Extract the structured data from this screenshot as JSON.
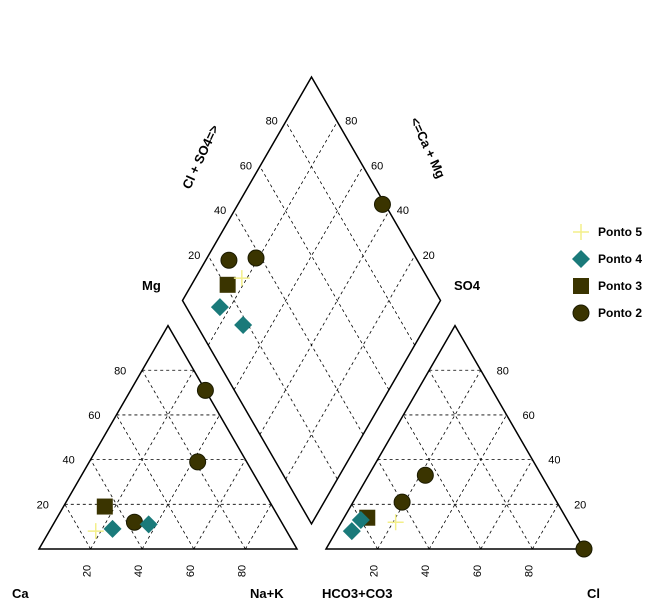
{
  "chart_data": {
    "type": "scatter",
    "subtype": "piper-diagram",
    "labels": {
      "cation_left": "Ca",
      "cation_right": "Na+K",
      "cation_top": "Mg",
      "anion_left": "HCO3+CO3",
      "anion_right": "Cl",
      "anion_top": "SO4",
      "diamond_left_axis": "Cl + SO4=>",
      "diamond_right_axis": "<=Ca + Mg"
    },
    "ticks": [
      "20",
      "40",
      "60",
      "80"
    ],
    "grid": "dashed",
    "legend_position": "right",
    "series": [
      {
        "name": "Ponto 5",
        "marker": "plus",
        "color": "#f3ef8a",
        "cations": [
          {
            "mg": 8,
            "na": 18,
            "ca": 74
          }
        ],
        "anions": [
          {
            "so4": 12,
            "cl": 21,
            "hco3": 67
          }
        ],
        "diamond": [
          {
            "cl_so4": 28,
            "ca_mg": 82
          }
        ]
      },
      {
        "name": "Ponto 4",
        "marker": "diamond",
        "color": "#1a7a7a",
        "cations": [
          {
            "mg": 9,
            "na": 24,
            "ca": 67
          },
          {
            "mg": 11,
            "na": 37,
            "ca": 52
          }
        ],
        "anions": [
          {
            "so4": 8,
            "cl": 6,
            "hco3": 86
          },
          {
            "so4": 13,
            "cl": 7,
            "hco3": 80
          }
        ],
        "diamond": [
          {
            "cl_so4": 13,
            "ca_mg": 84
          },
          {
            "cl_so4": 18,
            "ca_mg": 71
          }
        ]
      },
      {
        "name": "Ponto 3",
        "marker": "square",
        "color": "#3a3400",
        "cations": [
          {
            "mg": 19,
            "na": 16,
            "ca": 65
          }
        ],
        "anions": [
          {
            "so4": 14,
            "cl": 9,
            "hco3": 77
          }
        ],
        "diamond": [
          {
            "cl_so4": 21,
            "ca_mg": 86
          }
        ]
      },
      {
        "name": "Ponto 2",
        "marker": "circle",
        "color": "#3a3400",
        "cations": [
          {
            "mg": 12,
            "na": 31,
            "ca": 57
          },
          {
            "mg": 71,
            "na": 29,
            "ca": 0
          },
          {
            "mg": 39,
            "na": 42,
            "ca": 19
          }
        ],
        "anions": [
          {
            "so4": 21,
            "cl": 19,
            "hco3": 60
          },
          {
            "so4": 33,
            "cl": 22,
            "hco3": 45
          },
          {
            "so4": 0,
            "cl": 100,
            "hco3": 0
          }
        ],
        "diamond": [
          {
            "cl_so4": 27,
            "ca_mg": 91
          },
          {
            "cl_so4": 38,
            "ca_mg": 81
          },
          {
            "cl_so4": 99,
            "ca_mg": 44
          }
        ]
      }
    ]
  }
}
